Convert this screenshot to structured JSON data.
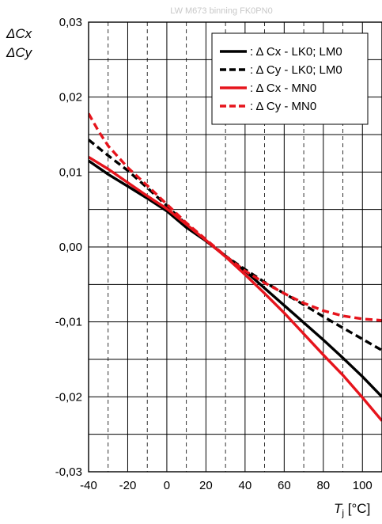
{
  "chart_data": {
    "type": "line",
    "title": "LW M673 binning FK0PN0",
    "ylabel_lines": [
      "ΔCx",
      "ΔCy"
    ],
    "xlabel_main": "T",
    "xlabel_sub": "j",
    "xlabel_unit": " [°C]",
    "xlim": [
      -40,
      110
    ],
    "ylim": [
      -0.03,
      0.03
    ],
    "x_ticks": [
      -40,
      -20,
      0,
      20,
      40,
      60,
      80,
      100
    ],
    "x_tick_labels": [
      "-40",
      "-20",
      "0",
      "20",
      "40",
      "60",
      "80",
      "100"
    ],
    "y_ticks": [
      -0.03,
      -0.02,
      -0.01,
      0.0,
      0.01,
      0.02,
      0.03
    ],
    "y_tick_labels": [
      "-0,03",
      "-0,02",
      "-0,01",
      "0,00",
      "0,01",
      "0,02",
      "0,03"
    ],
    "grid": true,
    "legend_position": "top-right",
    "series": [
      {
        "name": ": Δ Cx - LK0; LM0",
        "color": "#000000",
        "dash": "solid",
        "x": [
          -40,
          -30,
          -20,
          -10,
          0,
          10,
          20,
          30,
          40,
          50,
          60,
          70,
          80,
          90,
          100,
          110
        ],
        "y": [
          0.0115,
          0.0097,
          0.0081,
          0.0065,
          0.0048,
          0.0026,
          0.0008,
          -0.0012,
          -0.0032,
          -0.0055,
          -0.0078,
          -0.0101,
          -0.0124,
          -0.0148,
          -0.0173,
          -0.02
        ]
      },
      {
        "name": ": Δ Cy - LK0; LM0",
        "color": "#000000",
        "dash": "dashed",
        "x": [
          -40,
          -30,
          -20,
          -10,
          0,
          10,
          20,
          30,
          40,
          50,
          60,
          70,
          80,
          90,
          100,
          110
        ],
        "y": [
          0.0143,
          0.0122,
          0.0102,
          0.0079,
          0.0055,
          0.003,
          0.0008,
          -0.0012,
          -0.003,
          -0.0047,
          -0.0062,
          -0.0077,
          -0.0093,
          -0.0108,
          -0.0123,
          -0.0138
        ]
      },
      {
        "name": ": Δ Cx - MN0",
        "color": "#e6141c",
        "dash": "solid",
        "x": [
          -40,
          -30,
          -20,
          -10,
          0,
          10,
          20,
          30,
          40,
          50,
          60,
          70,
          80,
          90,
          100,
          110
        ],
        "y": [
          0.012,
          0.0104,
          0.0086,
          0.0068,
          0.0051,
          0.003,
          0.0009,
          -0.0013,
          -0.0037,
          -0.0062,
          -0.0088,
          -0.0116,
          -0.0144,
          -0.0171,
          -0.0201,
          -0.0232
        ]
      },
      {
        "name": ": Δ Cy - MN0",
        "color": "#e6141c",
        "dash": "dashed",
        "x": [
          -40,
          -35,
          -30,
          -20,
          -10,
          0,
          10,
          20,
          30,
          40,
          50,
          60,
          70,
          80,
          90,
          100,
          110
        ],
        "y": [
          0.0178,
          0.0155,
          0.0135,
          0.0106,
          0.0082,
          0.0057,
          0.0032,
          0.001,
          -0.0012,
          -0.0032,
          -0.0048,
          -0.0062,
          -0.0075,
          -0.0085,
          -0.0092,
          -0.0096,
          -0.0098
        ]
      }
    ]
  }
}
